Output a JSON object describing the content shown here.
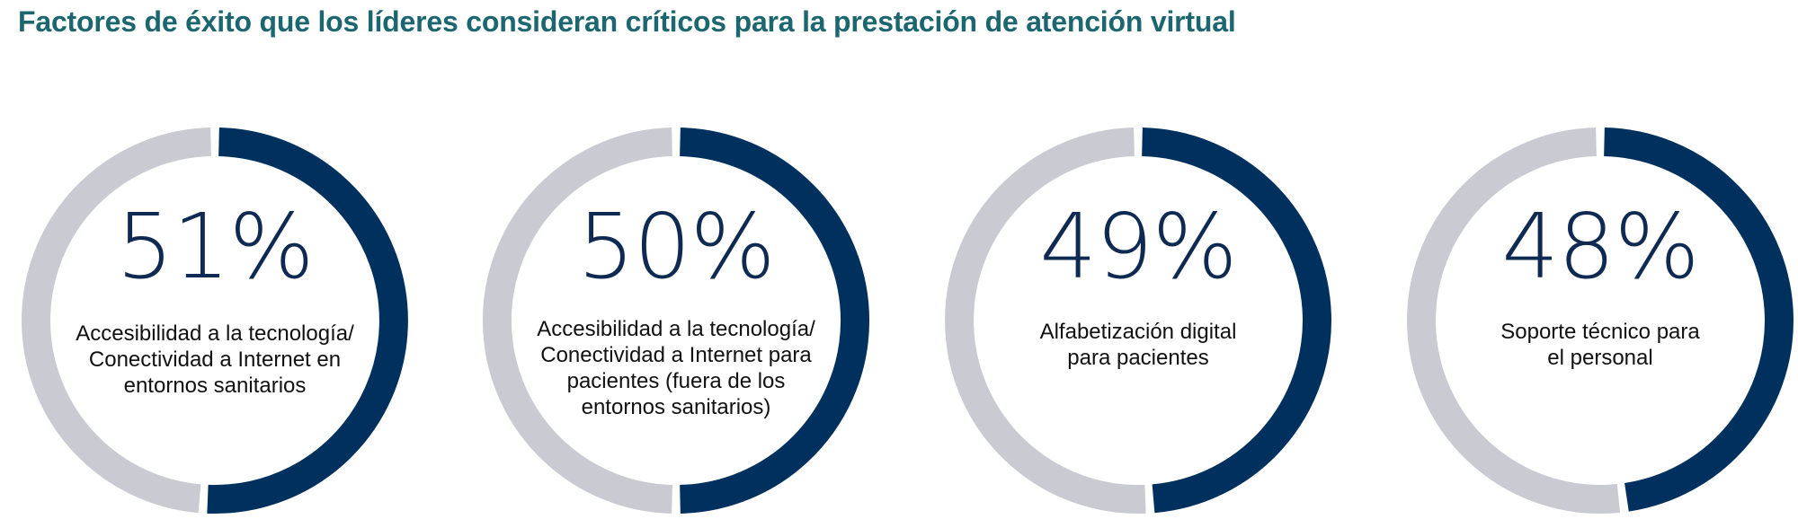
{
  "title": "Factores de éxito que los líderes consideran críticos para la prestación de atención virtual",
  "colors": {
    "title": "#1c6670",
    "arc": "#00315e",
    "track": "#c9cad2",
    "number": "#0e2a52"
  },
  "chart_data": {
    "type": "pie",
    "variant": "donut",
    "title": "Factores de éxito que los líderes consideran críticos para la prestación de atención virtual",
    "items": [
      {
        "value": 51,
        "label": "51%",
        "description": "Accesibilidad a la tecnología/ Conectividad a Internet en entornos sanitarios",
        "lines": [
          "Accesibilidad a la tecnología/",
          "Conectividad a Internet en",
          "entornos sanitarios"
        ]
      },
      {
        "value": 50,
        "label": "50%",
        "description": "Accesibilidad a la tecnología/ Conectividad a Internet para pacientes (fuera de los entornos sanitarios)",
        "lines": [
          "Accesibilidad a la tecnología/",
          "Conectividad a Internet para",
          "pacientes (fuera de los",
          "entornos sanitarios)"
        ]
      },
      {
        "value": 49,
        "label": "49%",
        "description": "Alfabetización digital para pacientes",
        "lines": [
          "Alfabetización digital",
          "para pacientes"
        ]
      },
      {
        "value": 48,
        "label": "48%",
        "description": "Soporte técnico para el personal",
        "lines": [
          "Soporte técnico para",
          "el personal"
        ]
      }
    ]
  }
}
